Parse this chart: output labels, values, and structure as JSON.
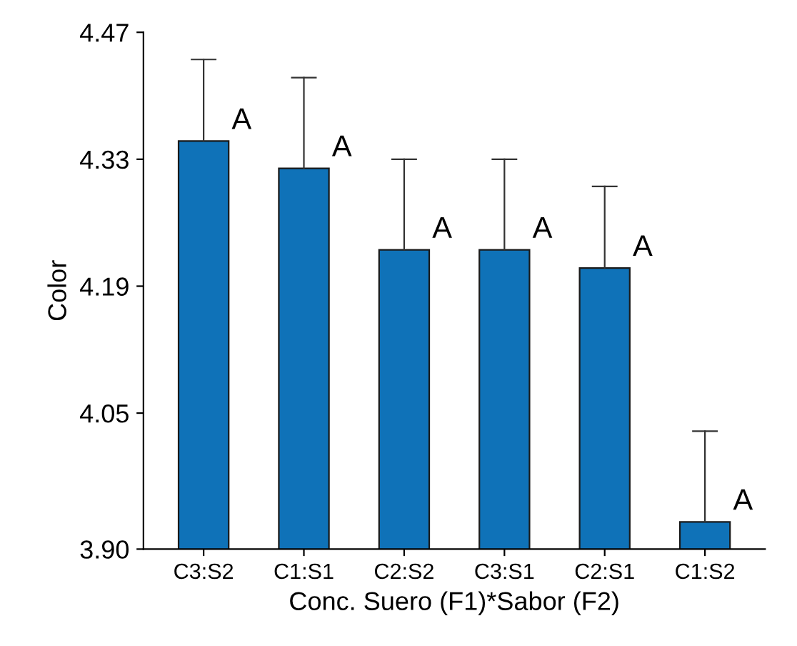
{
  "chart_data": {
    "type": "bar",
    "xlabel": "Conc. Suero (F1)*Sabor (F2)",
    "ylabel": "Color",
    "categories": [
      "C3:S2",
      "C1:S1",
      "C2:S2",
      "C3:S1",
      "C2:S1",
      "C1:S2"
    ],
    "values": [
      4.35,
      4.32,
      4.23,
      4.23,
      4.21,
      3.93
    ],
    "errors": [
      [
        4.35,
        4.44
      ],
      [
        4.32,
        4.42
      ],
      [
        4.23,
        4.33
      ],
      [
        4.23,
        4.33
      ],
      [
        4.21,
        4.3
      ],
      [
        3.93,
        4.03
      ]
    ],
    "color": "#0f72b8",
    "ylim": [
      3.9,
      4.47
    ],
    "yticks": [
      {
        "value": 3.9,
        "label": "3.90"
      },
      {
        "value": 4.05,
        "label": "4.05"
      },
      {
        "value": 4.19,
        "label": "4.19"
      },
      {
        "value": 4.33,
        "label": "4.33"
      },
      {
        "value": 4.47,
        "label": "4.47"
      }
    ],
    "annotations": [
      {
        "text": "A",
        "x": "C3:S2",
        "y": 4.35
      },
      {
        "text": "A",
        "x": "C1:S1",
        "y": 4.32
      },
      {
        "text": "A",
        "x": "C2:S2",
        "y": 4.23
      },
      {
        "text": "A",
        "x": "C3:S1",
        "y": 4.23
      },
      {
        "text": "A",
        "x": "C2:S1",
        "y": 4.21
      },
      {
        "text": "A",
        "x": "C1:S2",
        "y": 3.93
      }
    ],
    "grid": false,
    "legend": false
  }
}
